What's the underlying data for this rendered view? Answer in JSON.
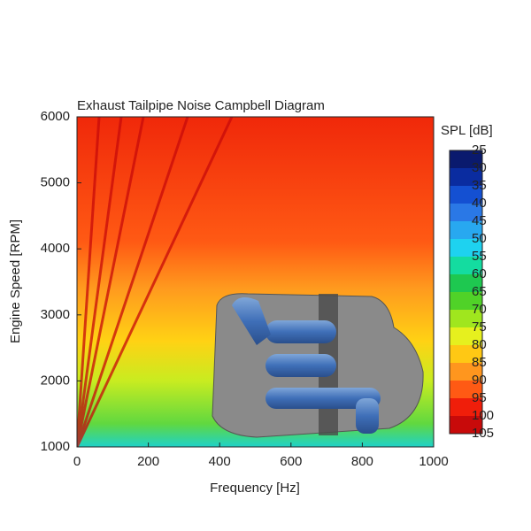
{
  "chart_data": {
    "type": "heatmap",
    "title": "Exhaust Tailpipe Noise Campbell Diagram",
    "xlabel": "Frequency [Hz]",
    "ylabel": "Engine Speed [RPM]",
    "xlim": [
      0,
      1000
    ],
    "xticks": [
      0,
      200,
      400,
      600,
      800,
      1000
    ],
    "ylim": [
      1000,
      6000
    ],
    "yticks": [
      1000,
      2000,
      3000,
      4000,
      5000,
      6000
    ],
    "colorbar": {
      "title": "SPL [dB]",
      "levels": [
        25,
        30,
        35,
        40,
        45,
        50,
        55,
        60,
        65,
        70,
        75,
        80,
        85,
        90,
        95,
        100,
        105
      ],
      "colors": [
        "#0a1a6e",
        "#0a2ca0",
        "#1450d2",
        "#2a78e6",
        "#28a8f0",
        "#1ed2f0",
        "#14dca0",
        "#1ec850",
        "#50d228",
        "#a0e61e",
        "#e6f01e",
        "#ffc814",
        "#ff961e",
        "#ff5a14",
        "#f01e0a",
        "#c80a0a"
      ]
    }
  }
}
